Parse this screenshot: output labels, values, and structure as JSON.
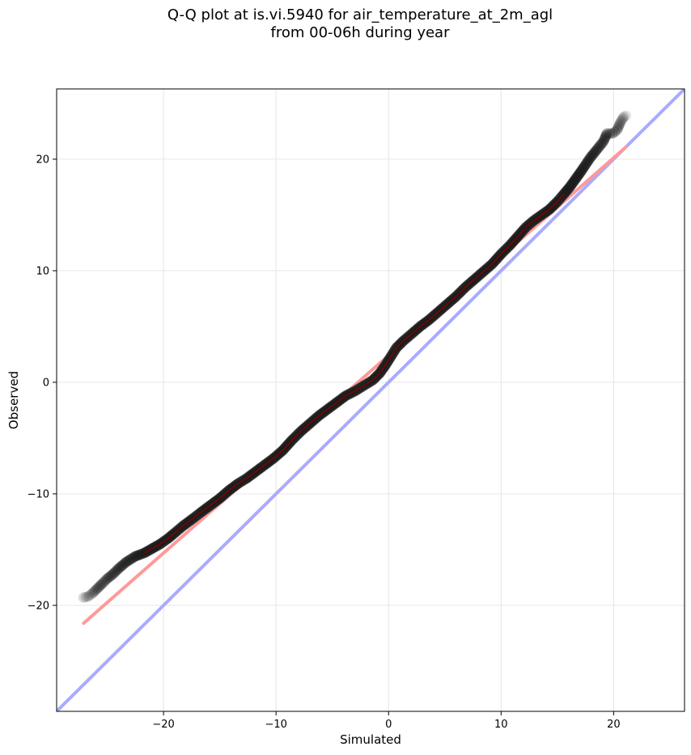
{
  "title_line1": "Q-Q plot at is.vi.5940 for air_temperature_at_2m_agl",
  "title_line2": "from 00-06h during year",
  "chart_data": {
    "type": "scatter",
    "title": "Q-Q plot at is.vi.5940 for air_temperature_at_2m_agl from 00-06h during year",
    "xlabel": "Simulated",
    "ylabel": "Observed",
    "xlim": [
      -29.5,
      26.3
    ],
    "ylim": [
      -29.5,
      26.3
    ],
    "xticks": [
      -20,
      -10,
      0,
      10,
      20
    ],
    "yticks": [
      -20,
      -10,
      0,
      10,
      20
    ],
    "xtick_labels": [
      "−20",
      "−10",
      "0",
      "10",
      "20"
    ],
    "ytick_labels": [
      "−20",
      "−10",
      "0",
      "10",
      "20"
    ],
    "grid": true,
    "quantile_points": [
      [
        -27.1,
        -19.3
      ],
      [
        -26.7,
        -19.2
      ],
      [
        -26.3,
        -18.9
      ],
      [
        -25.9,
        -18.5
      ],
      [
        -25.5,
        -18.1
      ],
      [
        -25.0,
        -17.6
      ],
      [
        -24.5,
        -17.2
      ],
      [
        -24.0,
        -16.7
      ],
      [
        -23.3,
        -16.1
      ],
      [
        -22.5,
        -15.6
      ],
      [
        -21.7,
        -15.3
      ],
      [
        -21.0,
        -14.9
      ],
      [
        -20.3,
        -14.5
      ],
      [
        -19.6,
        -14.0
      ],
      [
        -19.0,
        -13.5
      ],
      [
        -18.3,
        -12.9
      ],
      [
        -17.5,
        -12.3
      ],
      [
        -16.6,
        -11.6
      ],
      [
        -15.8,
        -11.0
      ],
      [
        -15.0,
        -10.4
      ],
      [
        -14.2,
        -9.7
      ],
      [
        -13.4,
        -9.1
      ],
      [
        -12.6,
        -8.6
      ],
      [
        -11.8,
        -8.0
      ],
      [
        -11.0,
        -7.4
      ],
      [
        -10.2,
        -6.8
      ],
      [
        -9.4,
        -6.1
      ],
      [
        -8.6,
        -5.2
      ],
      [
        -7.8,
        -4.4
      ],
      [
        -7.0,
        -3.7
      ],
      [
        -6.2,
        -3.0
      ],
      [
        -5.4,
        -2.4
      ],
      [
        -4.6,
        -1.8
      ],
      [
        -3.8,
        -1.2
      ],
      [
        -3.0,
        -0.8
      ],
      [
        -2.2,
        -0.3
      ],
      [
        -1.4,
        0.2
      ],
      [
        -0.8,
        0.8
      ],
      [
        -0.3,
        1.5
      ],
      [
        0.2,
        2.3
      ],
      [
        0.7,
        3.1
      ],
      [
        1.3,
        3.7
      ],
      [
        2.0,
        4.3
      ],
      [
        2.8,
        5.0
      ],
      [
        3.6,
        5.6
      ],
      [
        4.4,
        6.3
      ],
      [
        5.2,
        7.0
      ],
      [
        6.0,
        7.7
      ],
      [
        6.8,
        8.5
      ],
      [
        7.6,
        9.2
      ],
      [
        8.4,
        9.9
      ],
      [
        9.2,
        10.6
      ],
      [
        10.0,
        11.5
      ],
      [
        10.8,
        12.3
      ],
      [
        11.5,
        13.1
      ],
      [
        12.2,
        13.9
      ],
      [
        12.9,
        14.5
      ],
      [
        13.6,
        15.0
      ],
      [
        14.3,
        15.5
      ],
      [
        15.0,
        16.2
      ],
      [
        15.6,
        16.9
      ],
      [
        16.1,
        17.5
      ],
      [
        16.6,
        18.2
      ],
      [
        17.1,
        18.9
      ],
      [
        17.5,
        19.5
      ],
      [
        17.9,
        20.1
      ],
      [
        18.3,
        20.6
      ],
      [
        18.7,
        21.1
      ],
      [
        19.1,
        21.6
      ],
      [
        19.4,
        22.3
      ],
      [
        19.9,
        22.3
      ],
      [
        20.3,
        22.6
      ],
      [
        20.6,
        23.3
      ],
      [
        20.9,
        23.8
      ],
      [
        21.1,
        23.9
      ]
    ],
    "fit_line": {
      "color": "#ff9999",
      "x": [
        -27.1,
        21.1
      ],
      "y": [
        -21.6,
        21.1
      ]
    },
    "identity_line": {
      "color": "#aaaaff",
      "x": [
        -29.5,
        26.3
      ],
      "y": [
        -29.5,
        26.3
      ]
    },
    "point_color": "#1a1a1a",
    "trend_color": "#8b0000"
  }
}
